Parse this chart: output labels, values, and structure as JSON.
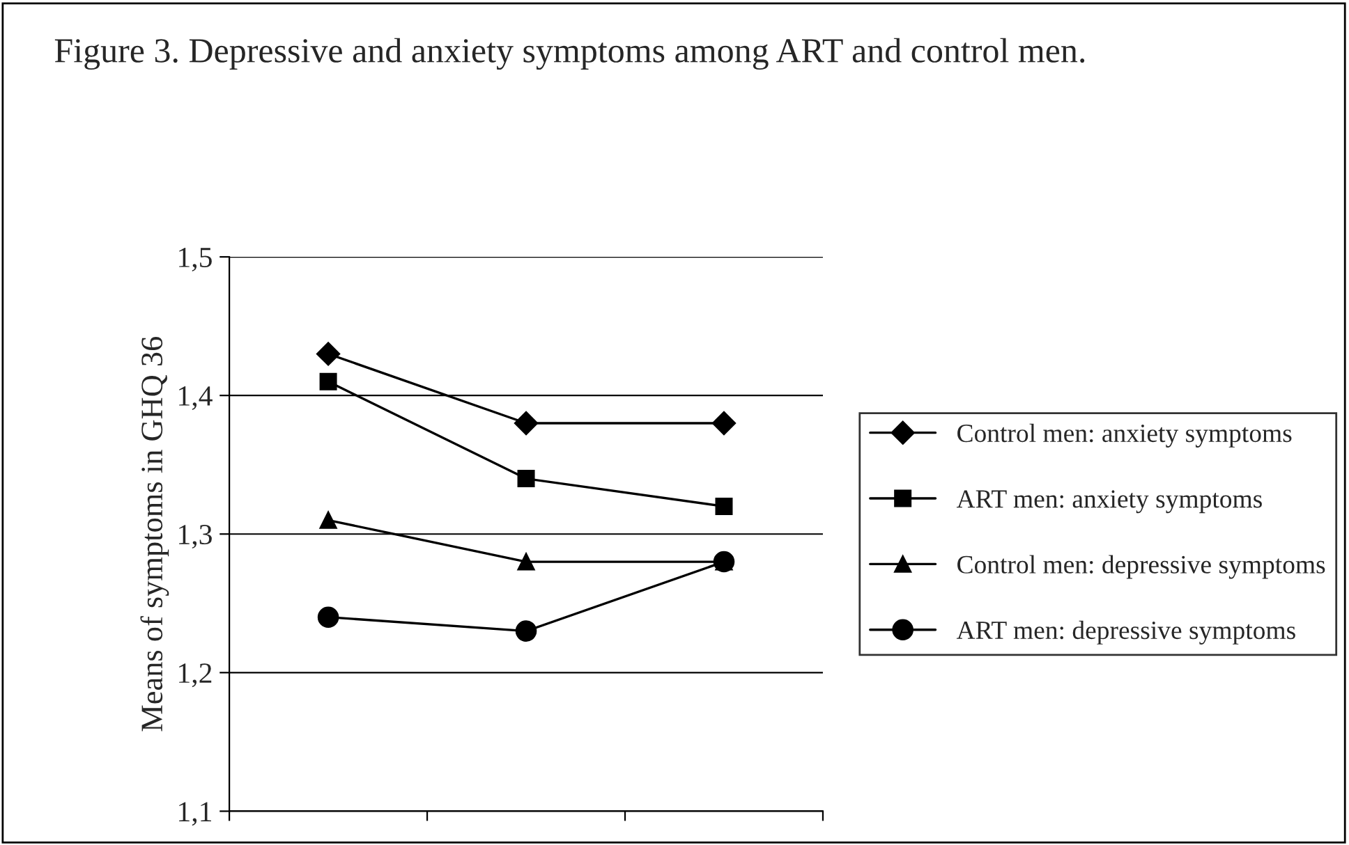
{
  "chart_data": {
    "type": "line",
    "title": "Figure 3. Depressive and anxiety symptoms among ART and control men.",
    "ylabel": "Means of symptoms in GHQ 36",
    "categories": [
      null,
      null,
      null
    ],
    "series": [
      {
        "name": "Control men: anxiety symptoms",
        "color": "#000000",
        "marker": "diamond",
        "values": [
          1.43,
          1.38,
          1.38
        ]
      },
      {
        "name": "ART men: anxiety symptoms",
        "color": "#000000",
        "marker": "square",
        "values": [
          1.41,
          1.34,
          1.32
        ]
      },
      {
        "name": "Control men: depressive symptoms",
        "color": "#000000",
        "marker": "triangle",
        "values": [
          1.31,
          1.28,
          1.28
        ]
      },
      {
        "name": "ART men: depressive symptoms",
        "color": "#000000",
        "marker": "circle",
        "values": [
          1.24,
          1.23,
          1.28
        ]
      }
    ],
    "ylim": [
      1.1,
      1.5
    ],
    "yticks": [
      {
        "value": 1.1,
        "label": "1,1"
      },
      {
        "value": 1.2,
        "label": "1,2"
      },
      {
        "value": 1.3,
        "label": "1,3"
      },
      {
        "value": 1.4,
        "label": "1,4"
      },
      {
        "value": 1.5,
        "label": "1,5"
      }
    ],
    "grid": "y",
    "legend": "right",
    "line_style": "solid"
  }
}
